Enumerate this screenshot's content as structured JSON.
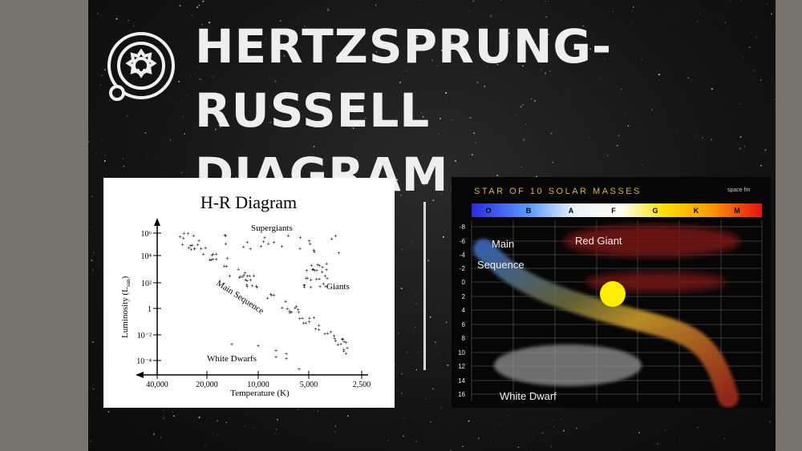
{
  "slide": {
    "title": "HERTZSPRUNG-RUSSELL\nDIAGRAM",
    "logo_icon": "planet-system-icon"
  },
  "hr_diagram": {
    "title": "H-R Diagram",
    "ylabel": "Luminosity (L",
    "ylabel_sub": "sun",
    "ylabel_close": ")",
    "xlabel": "Temperature (K)",
    "y_ticks": [
      "10⁶",
      "10⁴",
      "10²",
      "1",
      "10⁻²",
      "10⁻⁴"
    ],
    "x_ticks": [
      "40,000",
      "20,000",
      "10,000",
      "5,000",
      "2,500"
    ],
    "labels": {
      "supergiants": "Supergiants",
      "giants": "Giants",
      "main_sequence": "Main Sequence",
      "white_dwarfs": "White Dwarfs"
    }
  },
  "star_chart": {
    "title": "STAR OF 10 SOLAR MASSES",
    "brand": "space fm",
    "spectral_classes": [
      "O",
      "B",
      "A",
      "F",
      "G",
      "K",
      "M"
    ],
    "magnitudes": [
      "-8",
      "-6",
      "-4",
      "-2",
      "0",
      "2",
      "4",
      "6",
      "8",
      "10",
      "12",
      "14",
      "16"
    ],
    "labels": {
      "main": "Main",
      "sequence": "Sequence",
      "red_giant": "Red Giant",
      "white_dwarf": "White Dwarf"
    },
    "colors": {
      "title": "#e0b32a",
      "star": "#ffee00",
      "red_giant": "#8a1a1a",
      "white_dwarf": "#9a9a9a",
      "main_sequence_blue": "#3a6ab8",
      "main_sequence_red": "#a02a1a"
    }
  }
}
